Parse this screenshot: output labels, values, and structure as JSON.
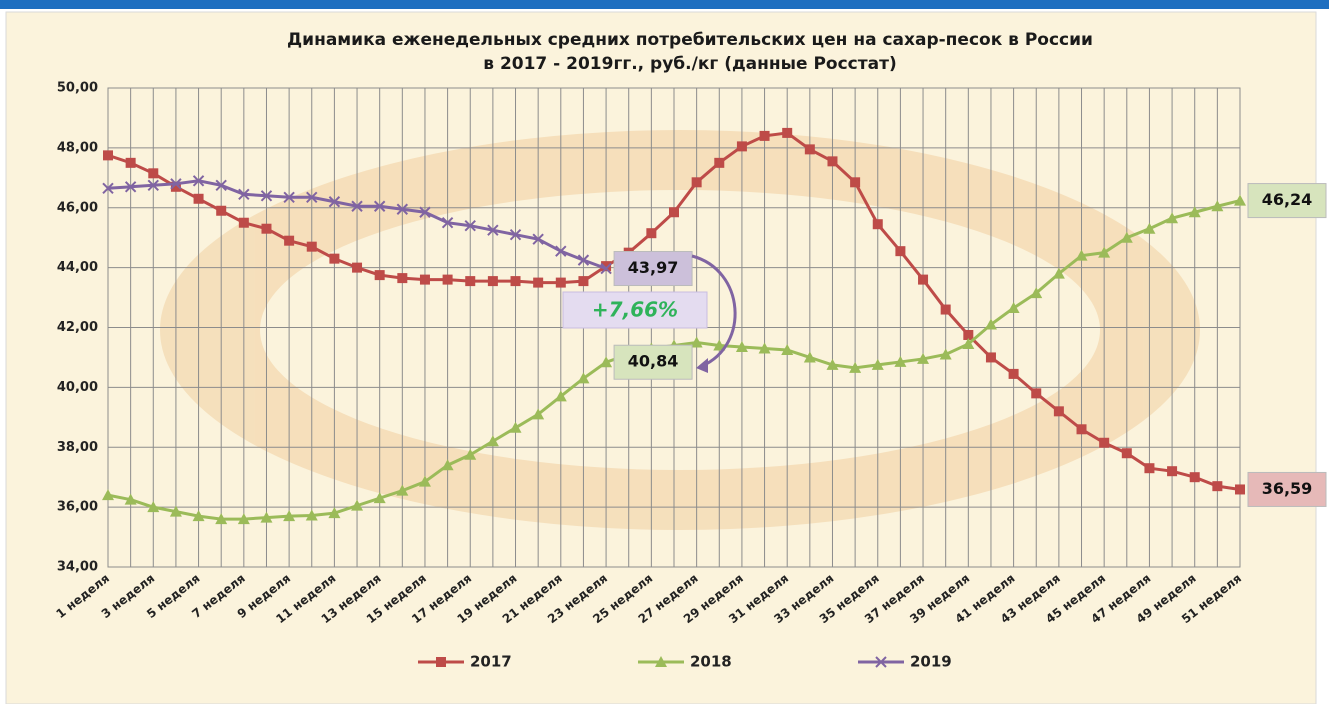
{
  "chart_data": {
    "type": "line",
    "title": "Динамика еженедельных средних потребительских цен на сахар-песок в России",
    "subtitle": "в 2017 - 2019гг., руб./кг (данные Росстат)",
    "categories": [
      "1 неделя",
      null,
      "3 неделя",
      null,
      "5 неделя",
      null,
      "7 неделя",
      null,
      "9 неделя",
      null,
      "11 неделя",
      null,
      "13 неделя",
      null,
      "15 неделя",
      null,
      "17 неделя",
      null,
      "19 неделя",
      null,
      "21 неделя",
      null,
      "23 неделя",
      null,
      "25 неделя",
      null,
      "27 неделя",
      null,
      "29 неделя",
      null,
      "31 неделя",
      null,
      "33 неделя",
      null,
      "35 неделя",
      null,
      "37 неделя",
      null,
      "39 неделя",
      null,
      "41 неделя",
      null,
      "43 неделя",
      null,
      "45 неделя",
      null,
      "47 неделя",
      null,
      "49 неделя",
      null,
      "51 неделя"
    ],
    "series": [
      {
        "name": "2017",
        "color": "#be4b48",
        "marker": "square",
        "values": [
          47.75,
          47.5,
          47.15,
          46.7,
          46.3,
          45.9,
          45.5,
          45.3,
          44.9,
          44.7,
          44.3,
          44.0,
          43.75,
          43.65,
          43.6,
          43.6,
          43.55,
          43.55,
          43.55,
          43.5,
          43.5,
          43.55,
          44.05,
          44.5,
          45.15,
          45.85,
          46.85,
          47.5,
          48.05,
          48.4,
          48.5,
          47.95,
          47.55,
          46.85,
          45.45,
          44.55,
          43.6,
          42.6,
          41.75,
          41.0,
          40.45,
          39.8,
          39.2,
          38.6,
          38.15,
          37.8,
          37.3,
          37.2,
          37.0,
          36.7,
          36.59
        ],
        "value_labels": [
          null,
          null,
          null,
          null,
          null,
          null,
          null,
          null,
          null,
          null,
          null,
          null,
          null,
          null,
          null,
          null,
          null,
          null,
          null,
          null,
          null,
          null,
          null,
          null,
          null,
          null,
          null,
          null,
          null,
          null,
          null,
          null,
          null,
          null,
          null,
          null,
          null,
          null,
          null,
          null,
          null,
          null,
          null,
          null,
          null,
          null,
          null,
          null,
          null,
          null,
          "36,59"
        ],
        "label_color": "#e6b9b8"
      },
      {
        "name": "2018",
        "color": "#9bbb59",
        "marker": "triangle",
        "values": [
          36.4,
          36.25,
          36.0,
          35.85,
          35.7,
          35.6,
          35.6,
          35.65,
          35.7,
          35.72,
          35.8,
          36.05,
          36.3,
          36.55,
          36.85,
          37.4,
          37.75,
          38.2,
          38.65,
          39.1,
          39.7,
          40.3,
          40.84,
          41.1,
          41.3,
          41.4,
          41.5,
          41.4,
          41.35,
          41.3,
          41.25,
          41.0,
          40.75,
          40.65,
          40.75,
          40.85,
          40.95,
          41.1,
          41.45,
          42.1,
          42.65,
          43.15,
          43.8,
          44.4,
          44.5,
          45.0,
          45.3,
          45.65,
          45.85,
          46.05,
          46.24
        ],
        "value_labels": [
          null,
          null,
          null,
          null,
          null,
          null,
          null,
          null,
          null,
          null,
          null,
          null,
          null,
          null,
          null,
          null,
          null,
          null,
          null,
          null,
          null,
          null,
          "40,84",
          null,
          null,
          null,
          null,
          null,
          null,
          null,
          null,
          null,
          null,
          null,
          null,
          null,
          null,
          null,
          null,
          null,
          null,
          null,
          null,
          null,
          null,
          null,
          null,
          null,
          null,
          null,
          "46,24"
        ],
        "label_color": "#d7e4bd"
      },
      {
        "name": "2019",
        "color": "#8064a2",
        "marker": "x",
        "values": [
          46.65,
          46.7,
          46.75,
          46.8,
          46.9,
          46.75,
          46.45,
          46.4,
          46.35,
          46.35,
          46.2,
          46.05,
          46.05,
          45.95,
          45.85,
          45.5,
          45.4,
          45.25,
          45.1,
          44.95,
          44.55,
          44.25,
          43.97,
          null,
          null,
          null,
          null,
          null,
          null,
          null,
          null,
          null,
          null,
          null,
          null,
          null,
          null,
          null,
          null,
          null,
          null,
          null,
          null,
          null,
          null,
          null,
          null,
          null,
          null,
          null,
          null
        ],
        "value_labels": [
          null,
          null,
          null,
          null,
          null,
          null,
          null,
          null,
          null,
          null,
          null,
          null,
          null,
          null,
          null,
          null,
          null,
          null,
          null,
          null,
          null,
          null,
          "43,97",
          null,
          null,
          null,
          null,
          null,
          null,
          null,
          null,
          null,
          null,
          null,
          null,
          null,
          null,
          null,
          null,
          null,
          null,
          null,
          null,
          null,
          null,
          null,
          null,
          null,
          null,
          null,
          null
        ],
        "label_color": "#ccc0da"
      }
    ],
    "annotation": "+7,66%",
    "ylim": [
      34,
      50
    ],
    "yticks": [
      {
        "value": 34,
        "label": "34,00"
      },
      {
        "value": 36,
        "label": "36,00"
      },
      {
        "value": 38,
        "label": "38,00"
      },
      {
        "value": 40,
        "label": "40,00"
      },
      {
        "value": 42,
        "label": "42,00"
      },
      {
        "value": 44,
        "label": "44,00"
      },
      {
        "value": 46,
        "label": "46,00"
      },
      {
        "value": 48,
        "label": "48,00"
      },
      {
        "value": 50,
        "label": "50,00"
      }
    ],
    "grid": true,
    "legend": "bottom"
  }
}
